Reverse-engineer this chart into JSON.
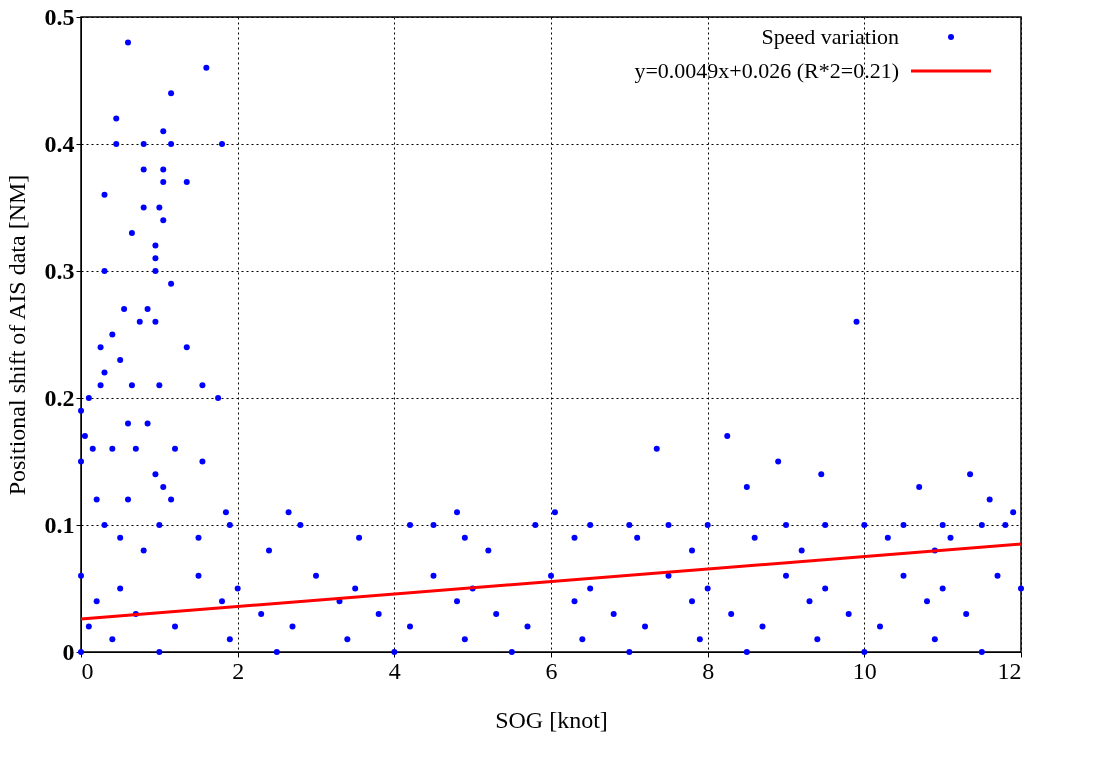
{
  "chart_data": {
    "type": "scatter",
    "xlabel": "SOG [knot]",
    "ylabel": "Positional shift of AIS data  [NM]",
    "xlim": [
      0,
      12
    ],
    "xticks": [
      0,
      2,
      4,
      6,
      8,
      10,
      12
    ],
    "ylim": [
      0,
      0.5
    ],
    "yticks": [
      0,
      0.1,
      0.2,
      0.3,
      0.4,
      0.5
    ],
    "grid": true,
    "legend": "top right",
    "series": [
      {
        "name": "Speed variation",
        "color": "#0000ff",
        "marker": "circle",
        "x": [
          0.6,
          1.6,
          1.15,
          0.45,
          1.05,
          0.45,
          0.8,
          1.15,
          1.8,
          1.05,
          0.8,
          1.35,
          1.05,
          0.3,
          0.8,
          1.0,
          1.05,
          0.65,
          0.95,
          0.95,
          1.15,
          0.3,
          0.95,
          0.55,
          0.85,
          0.75,
          0.95,
          0.4,
          0.25,
          1.35,
          0.5,
          0.3,
          0.65,
          1.0,
          1.55,
          0.25,
          0.1,
          1.75,
          0.0,
          0.6,
          0.85,
          0.05,
          0.15,
          0.4,
          0.7,
          1.2,
          0.0,
          1.55,
          0.95,
          1.05,
          0.2,
          0.6,
          1.15,
          9.9,
          7.35,
          8.25,
          8.9,
          9.45,
          11.35,
          8.5,
          10.7,
          11.6,
          3.55,
          1.85,
          2.65,
          4.8,
          6.05,
          11.9,
          0.3,
          1.0,
          1.9,
          2.8,
          4.2,
          4.5,
          5.8,
          6.5,
          7.0,
          7.5,
          8.0,
          9.0,
          9.5,
          10.0,
          10.5,
          11.0,
          11.5,
          11.8,
          0.5,
          1.5,
          4.9,
          6.3,
          7.1,
          8.6,
          10.3,
          11.1,
          0.8,
          2.4,
          5.2,
          7.8,
          9.2,
          10.9,
          0.0,
          1.5,
          3.0,
          4.5,
          6.0,
          7.5,
          9.0,
          10.5,
          11.7,
          0.5,
          2.0,
          3.5,
          5.0,
          6.5,
          8.0,
          9.5,
          11.0,
          12.0,
          0.2,
          1.8,
          3.3,
          4.8,
          6.3,
          7.8,
          9.3,
          10.8,
          0.7,
          2.3,
          3.8,
          5.3,
          6.8,
          8.3,
          9.8,
          11.3,
          0.1,
          1.2,
          2.7,
          4.2,
          5.7,
          7.2,
          8.7,
          10.2,
          0.4,
          1.9,
          3.4,
          4.9,
          6.4,
          7.9,
          9.4,
          10.9,
          0.0,
          1.0,
          2.5,
          4.0,
          5.5,
          7.0,
          8.5,
          10.0,
          11.5
        ],
        "values": [
          0.48,
          0.46,
          0.44,
          0.42,
          0.41,
          0.4,
          0.4,
          0.4,
          0.4,
          0.38,
          0.38,
          0.37,
          0.37,
          0.36,
          0.35,
          0.35,
          0.34,
          0.33,
          0.32,
          0.31,
          0.29,
          0.3,
          0.3,
          0.27,
          0.27,
          0.26,
          0.26,
          0.25,
          0.24,
          0.24,
          0.23,
          0.22,
          0.21,
          0.21,
          0.21,
          0.21,
          0.2,
          0.2,
          0.19,
          0.18,
          0.18,
          0.17,
          0.16,
          0.16,
          0.16,
          0.16,
          0.15,
          0.15,
          0.14,
          0.13,
          0.12,
          0.12,
          0.12,
          0.26,
          0.16,
          0.17,
          0.15,
          0.14,
          0.14,
          0.13,
          0.13,
          0.12,
          0.09,
          0.11,
          0.11,
          0.11,
          0.11,
          0.11,
          0.1,
          0.1,
          0.1,
          0.1,
          0.1,
          0.1,
          0.1,
          0.1,
          0.1,
          0.1,
          0.1,
          0.1,
          0.1,
          0.1,
          0.1,
          0.1,
          0.1,
          0.1,
          0.09,
          0.09,
          0.09,
          0.09,
          0.09,
          0.09,
          0.09,
          0.09,
          0.08,
          0.08,
          0.08,
          0.08,
          0.08,
          0.08,
          0.06,
          0.06,
          0.06,
          0.06,
          0.06,
          0.06,
          0.06,
          0.06,
          0.06,
          0.05,
          0.05,
          0.05,
          0.05,
          0.05,
          0.05,
          0.05,
          0.05,
          0.05,
          0.04,
          0.04,
          0.04,
          0.04,
          0.04,
          0.04,
          0.04,
          0.04,
          0.03,
          0.03,
          0.03,
          0.03,
          0.03,
          0.03,
          0.03,
          0.03,
          0.02,
          0.02,
          0.02,
          0.02,
          0.02,
          0.02,
          0.02,
          0.02,
          0.01,
          0.01,
          0.01,
          0.01,
          0.01,
          0.01,
          0.01,
          0.01,
          0.0,
          0.0,
          0.0,
          0.0,
          0.0,
          0.0,
          0.0,
          0.0,
          0.0
        ]
      },
      {
        "name": "y=0.0049x+0.026 (R*2=0.21)",
        "color": "#ff0000",
        "type": "line",
        "marker": "none",
        "line_style": "solid",
        "x": [
          0,
          12
        ],
        "values": [
          0.026,
          0.085
        ]
      }
    ]
  }
}
